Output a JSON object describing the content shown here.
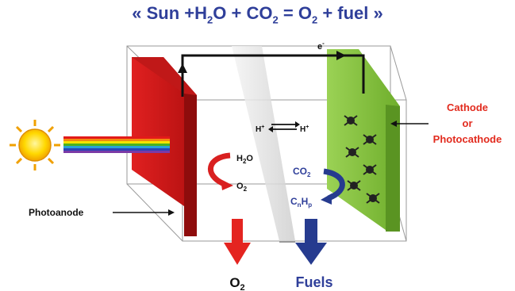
{
  "title": {
    "open_quote": "«",
    "sun": "Sun",
    "plus": "+",
    "h": "H",
    "sub2": "2",
    "o": "O",
    "co": "CO",
    "equals": "=",
    "o_prod": "O",
    "fuel": "fuel",
    "close_quote": "»"
  },
  "labels": {
    "electron": "e",
    "electron_sup": "-",
    "h_plus_left": "H",
    "h_plus_right": "H",
    "plus_sup": "+",
    "h2o_h": "H",
    "h2o_sub": "2",
    "h2o_o": "O",
    "o2_in_o": "O",
    "o2_in_sub": "2",
    "co2_co": "CO",
    "co2_sub": "2",
    "cnhp_c": "C",
    "cnhp_n": "n",
    "cnhp_h": "H",
    "cnhp_p": "p",
    "photoanode": "Photoanode",
    "cathode_line1": "Cathode",
    "cathode_line2": "or",
    "cathode_line3": "Photocathode",
    "o2_out_o": "O",
    "o2_out_sub": "2",
    "fuels": "Fuels"
  },
  "colors": {
    "title": "#2f3f9a",
    "anode": "#d01a1a",
    "cathode": "#86c440",
    "cathode_label": "#e22b1e",
    "fuel_arrow": "#263b8f",
    "o2_arrow": "#e42420",
    "co2_text": "#2f3f9a"
  }
}
